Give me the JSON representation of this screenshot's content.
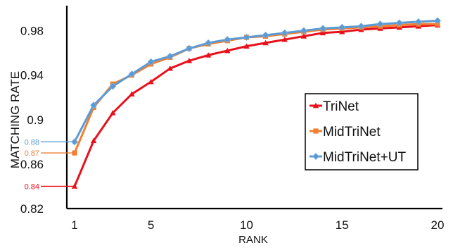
{
  "chart_data": {
    "type": "line",
    "title": "",
    "xlabel": "RANK",
    "ylabel": "MATCHING RATE",
    "xlim": [
      1,
      20
    ],
    "ylim": [
      0.82,
      1.0
    ],
    "xticks": [
      "1",
      "5",
      "10",
      "15",
      "20"
    ],
    "yticks": [
      "0.82",
      "0.86",
      "0.9",
      "0.94",
      "0.98"
    ],
    "grid": false,
    "legend_position": "right",
    "x": [
      1,
      2,
      3,
      4,
      5,
      6,
      7,
      8,
      9,
      10,
      11,
      12,
      13,
      14,
      15,
      16,
      17,
      18,
      19,
      20
    ],
    "series": [
      {
        "name": "TriNet",
        "color": "#e8101b",
        "marker": "triangle",
        "values": [
          0.84,
          0.881,
          0.906,
          0.923,
          0.934,
          0.946,
          0.953,
          0.958,
          0.962,
          0.966,
          0.969,
          0.972,
          0.975,
          0.978,
          0.979,
          0.981,
          0.982,
          0.983,
          0.984,
          0.985
        ]
      },
      {
        "name": "MidTriNet",
        "color": "#f07f32",
        "marker": "square",
        "values": [
          0.87,
          0.911,
          0.932,
          0.94,
          0.95,
          0.956,
          0.964,
          0.968,
          0.971,
          0.974,
          0.975,
          0.977,
          0.979,
          0.981,
          0.982,
          0.983,
          0.984,
          0.985,
          0.986,
          0.986
        ]
      },
      {
        "name": "MidTriNet+UT",
        "color": "#5b9bd5",
        "marker": "diamond",
        "values": [
          0.88,
          0.913,
          0.93,
          0.941,
          0.952,
          0.957,
          0.964,
          0.969,
          0.972,
          0.974,
          0.976,
          0.978,
          0.98,
          0.982,
          0.983,
          0.984,
          0.986,
          0.987,
          0.988,
          0.989
        ]
      }
    ],
    "annotations": [
      {
        "text": "0.88",
        "color": "#5b9bd5",
        "x": 1,
        "y": 0.88
      },
      {
        "text": "0.87",
        "color": "#f07f32",
        "x": 1,
        "y": 0.87
      },
      {
        "text": "0.84",
        "color": "#e8101b",
        "x": 1,
        "y": 0.84
      }
    ]
  }
}
